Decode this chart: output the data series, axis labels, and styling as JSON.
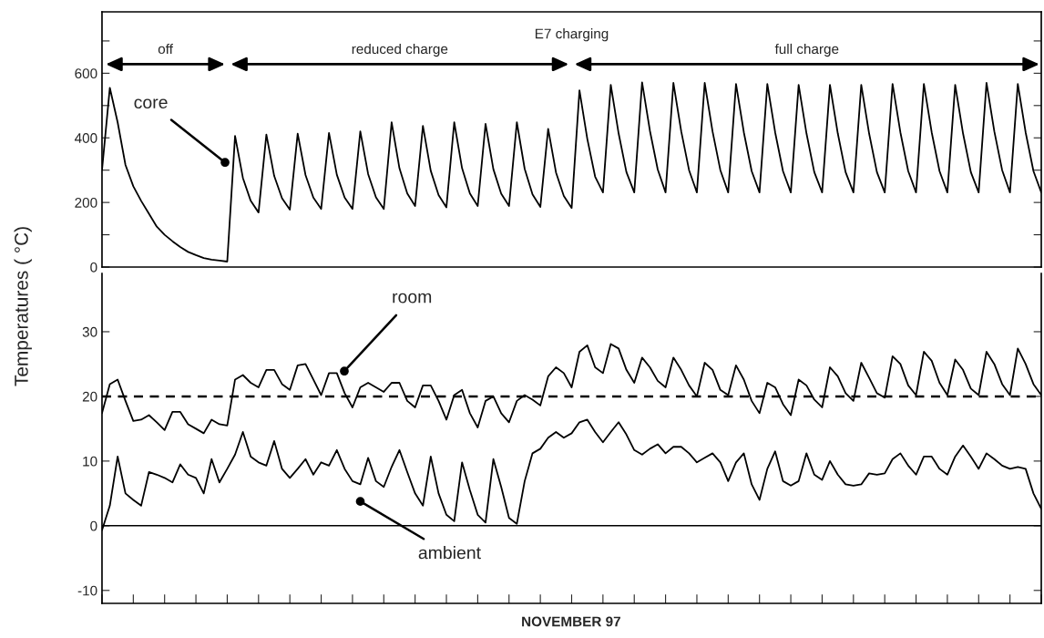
{
  "chart_data": [
    {
      "type": "line",
      "title": "E7 charging",
      "ylabel": "Temperatures ( °C)",
      "categories": [
        null,
        null,
        null,
        null,
        null,
        null,
        null,
        null,
        null,
        null,
        null,
        null,
        null,
        null,
        null,
        null,
        null,
        null,
        null,
        null,
        null,
        null,
        null,
        null,
        null,
        null,
        null,
        null,
        null,
        null,
        null,
        null,
        null,
        null,
        null,
        null,
        null,
        null,
        null,
        null,
        null,
        null,
        null,
        null,
        null,
        null,
        null,
        null,
        null,
        null,
        null,
        null,
        null,
        null,
        null,
        null,
        null,
        null,
        null,
        null,
        null,
        null,
        null,
        null,
        null,
        null,
        null,
        null,
        null,
        null,
        null,
        null,
        null,
        null,
        null,
        null,
        null,
        null,
        null,
        null,
        null,
        null,
        null,
        null,
        null,
        null,
        null,
        null,
        null,
        null,
        null,
        null,
        null,
        null,
        null,
        null,
        null,
        null,
        null,
        null,
        null,
        null,
        null,
        null,
        null,
        null,
        null,
        null,
        null,
        null,
        null,
        null,
        null,
        null,
        null,
        null,
        null,
        null,
        null,
        null,
        null
      ],
      "series": [
        {
          "name": "core",
          "color": "#000000",
          "values": [
            300,
            555,
            448,
            316,
            250,
            205,
            165,
            125,
            100,
            80,
            62,
            47,
            37,
            28,
            23,
            20,
            17,
            406,
            276,
            205,
            169,
            410,
            282,
            213,
            178,
            413,
            285,
            215,
            180,
            415,
            286,
            215,
            180,
            420,
            288,
            216,
            180,
            448,
            306,
            228,
            189,
            437,
            298,
            223,
            185,
            448,
            306,
            228,
            189,
            443,
            303,
            227,
            189,
            448,
            304,
            225,
            186,
            428,
            293,
            220,
            183,
            547,
            397,
            280,
            231,
            564,
            414,
            294,
            231,
            572,
            422,
            302,
            231,
            570,
            420,
            300,
            231,
            570,
            420,
            300,
            231,
            567,
            417,
            297,
            231,
            567,
            417,
            297,
            231,
            564,
            414,
            294,
            231,
            564,
            414,
            294,
            231,
            564,
            414,
            294,
            231,
            567,
            417,
            297,
            231,
            567,
            417,
            297,
            231,
            564,
            414,
            294,
            231,
            570,
            420,
            300,
            231,
            567,
            417,
            297,
            231
          ]
        }
      ],
      "ylim": [
        0,
        790
      ],
      "yticks": [
        0,
        {
          "value": 100,
          "label": null
        },
        200,
        {
          "value": 300,
          "label": null
        },
        400,
        {
          "value": 500,
          "label": null
        },
        600,
        {
          "value": 700,
          "label": null
        }
      ],
      "annotations": [
        "off",
        "reduced charge",
        "full charge"
      ],
      "tick_labels": "y",
      "grid": false,
      "legend": false
    },
    {
      "type": "line",
      "xlabel": "NOVEMBER 97",
      "categories": [
        null,
        null,
        null,
        null,
        null,
        null,
        null,
        null,
        null,
        null,
        null,
        null,
        null,
        null,
        null,
        null,
        null,
        null,
        null,
        null,
        null,
        null,
        null,
        null,
        null,
        null,
        null,
        null,
        null,
        null,
        null,
        null,
        null,
        null,
        null,
        null,
        null,
        null,
        null,
        null,
        null,
        null,
        null,
        null,
        null,
        null,
        null,
        null,
        null,
        null,
        null,
        null,
        null,
        null,
        null,
        null,
        null,
        null,
        null,
        null,
        null,
        null,
        null,
        null,
        null,
        null,
        null,
        null,
        null,
        null,
        null,
        null,
        null,
        null,
        null,
        null,
        null,
        null,
        null,
        null,
        null,
        null,
        null,
        null,
        null,
        null,
        null,
        null,
        null,
        null,
        null,
        null,
        null,
        null,
        null,
        null,
        null,
        null,
        null,
        null,
        null,
        null,
        null,
        null,
        null,
        null,
        null,
        null,
        null,
        null,
        null,
        null,
        null,
        null,
        null,
        null,
        null,
        null,
        null,
        null,
        null
      ],
      "series": [
        {
          "name": "room",
          "color": "#000000",
          "values": [
            17.4,
            21.9,
            22.6,
            19.3,
            16.2,
            16.4,
            17.1,
            16.0,
            14.8,
            17.6,
            17.6,
            15.7,
            15.0,
            14.3,
            16.4,
            15.7,
            15.5,
            22.6,
            23.3,
            22.1,
            21.4,
            24.1,
            24.1,
            21.9,
            21.0,
            24.8,
            25.0,
            22.6,
            20.2,
            23.6,
            23.6,
            20.5,
            18.3,
            21.4,
            22.1,
            21.4,
            20.7,
            22.1,
            22.1,
            19.3,
            18.3,
            21.7,
            21.7,
            19.3,
            16.4,
            20.2,
            21.0,
            17.4,
            15.2,
            19.3,
            20.0,
            17.4,
            16.0,
            19.3,
            20.2,
            19.5,
            18.6,
            23.1,
            24.5,
            23.6,
            21.4,
            26.9,
            27.9,
            24.5,
            23.6,
            28.1,
            27.4,
            24.1,
            22.1,
            26.0,
            24.5,
            22.4,
            21.4,
            26.0,
            24.1,
            21.7,
            20.0,
            25.2,
            24.1,
            21.0,
            20.2,
            24.8,
            22.6,
            19.3,
            17.4,
            22.1,
            21.4,
            18.8,
            17.1,
            22.6,
            21.7,
            19.5,
            18.3,
            24.5,
            23.1,
            20.5,
            19.3,
            25.2,
            22.9,
            20.5,
            19.8,
            26.2,
            25.0,
            21.7,
            20.2,
            26.9,
            25.5,
            22.1,
            20.2,
            25.7,
            24.1,
            21.2,
            20.2,
            26.9,
            25.0,
            21.9,
            20.2,
            27.4,
            25.0,
            21.9,
            20.2
          ]
        },
        {
          "name": "ambient",
          "color": "#000000",
          "values": [
            -0.7,
            3.1,
            10.7,
            5.0,
            4.0,
            3.1,
            8.3,
            7.9,
            7.4,
            6.7,
            9.5,
            7.9,
            7.4,
            5.0,
            10.3,
            6.7,
            8.8,
            11.0,
            14.5,
            10.7,
            9.8,
            9.3,
            13.1,
            8.8,
            7.4,
            8.8,
            10.3,
            7.9,
            9.8,
            9.3,
            11.7,
            8.8,
            6.9,
            6.4,
            10.5,
            6.9,
            6.0,
            9.1,
            11.7,
            8.3,
            5.0,
            3.1,
            10.7,
            5.0,
            1.7,
            0.7,
            9.8,
            5.5,
            1.7,
            0.5,
            10.3,
            6.0,
            1.2,
            0.3,
            6.9,
            11.2,
            11.9,
            13.6,
            14.5,
            13.6,
            14.3,
            16.0,
            16.4,
            14.5,
            12.9,
            14.5,
            16.0,
            14.1,
            11.7,
            11.0,
            11.9,
            12.6,
            11.2,
            12.2,
            12.2,
            11.2,
            9.8,
            10.5,
            11.2,
            9.8,
            6.9,
            9.8,
            11.2,
            6.4,
            4.0,
            8.8,
            11.5,
            6.9,
            6.2,
            6.9,
            11.2,
            7.9,
            7.1,
            10.0,
            7.9,
            6.4,
            6.2,
            6.4,
            8.1,
            7.9,
            8.1,
            10.3,
            11.2,
            9.3,
            7.9,
            10.7,
            10.7,
            8.8,
            7.9,
            10.7,
            12.4,
            10.7,
            8.8,
            11.2,
            10.3,
            9.3,
            8.8,
            9.1,
            8.8,
            5.0,
            2.6
          ]
        }
      ],
      "ylim": [
        -12,
        39
      ],
      "yticks": [
        -10,
        0,
        10,
        20,
        30
      ],
      "ref_lines": [
        {
          "axis": "y",
          "value": 20,
          "line_style": "dashed",
          "color": "#000000"
        },
        {
          "axis": "y",
          "value": 0,
          "line_style": "solid",
          "color": "#000000"
        }
      ],
      "tick_labels": "y",
      "grid": false,
      "legend": false
    }
  ]
}
